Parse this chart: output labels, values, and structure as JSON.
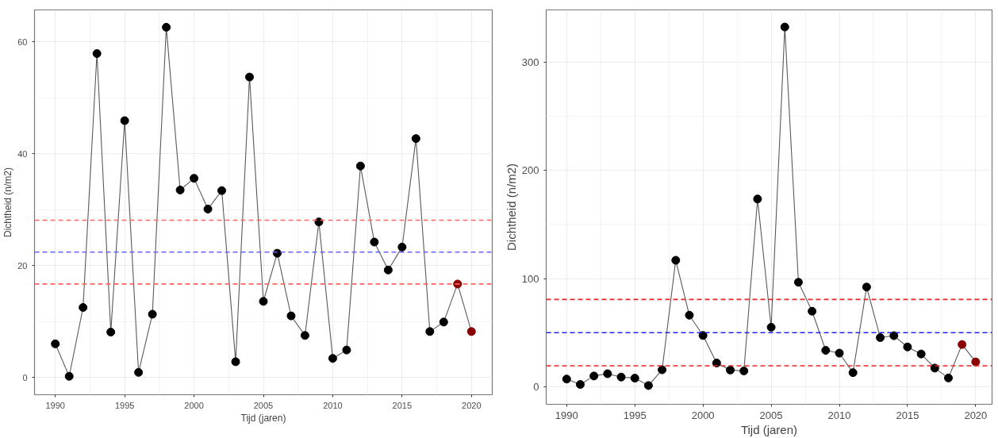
{
  "chart_data": [
    {
      "type": "line",
      "xlabel": "Tijd (jaren)",
      "ylabel": "Dichtheid (n/m2)",
      "x": [
        1990,
        1991,
        1992,
        1993,
        1994,
        1995,
        1996,
        1997,
        1998,
        1999,
        2000,
        2001,
        2002,
        2003,
        2004,
        2005,
        2006,
        2007,
        2008,
        2009,
        2010,
        2011,
        2012,
        2013,
        2014,
        2015,
        2016,
        2017,
        2018,
        2019,
        2020
      ],
      "series": [
        {
          "color": "#595959",
          "colors": [
            "#000000",
            "#000000",
            "#000000",
            "#000000",
            "#000000",
            "#000000",
            "#000000",
            "#000000",
            "#000000",
            "#000000",
            "#000000",
            "#000000",
            "#000000",
            "#000000",
            "#000000",
            "#000000",
            "#000000",
            "#000000",
            "#000000",
            "#000000",
            "#000000",
            "#000000",
            "#000000",
            "#000000",
            "#000000",
            "#000000",
            "#000000",
            "#000000",
            "#000000",
            "#8b0000",
            "#8b0000"
          ],
          "values": [
            6.0,
            0.2,
            12.5,
            57.9,
            8.1,
            45.9,
            0.9,
            11.3,
            62.6,
            33.5,
            35.6,
            30.1,
            33.4,
            2.8,
            53.7,
            13.6,
            22.2,
            11.0,
            7.5,
            27.8,
            3.4,
            4.9,
            37.8,
            24.2,
            19.2,
            23.3,
            42.7,
            8.2,
            9.9,
            16.7,
            8.2
          ]
        }
      ],
      "xlim": [
        1988.5,
        2021.5
      ],
      "ylim": [
        -3.1,
        65.7
      ],
      "xticks": [
        1990,
        1995,
        2000,
        2005,
        2010,
        2015,
        2020
      ],
      "yticks": [
        0,
        20,
        40,
        60
      ],
      "ref_lines": [
        {
          "axis": "y",
          "value": 28.1,
          "color": "#ff6666",
          "line_style": "dashed"
        },
        {
          "axis": "y",
          "value": 22.4,
          "color": "#6666ff",
          "line_style": "dashed"
        },
        {
          "axis": "y",
          "value": 16.7,
          "color": "#ff6666",
          "line_style": "dashed"
        }
      ],
      "grid": true,
      "marker": "circle",
      "line_style": "solid"
    },
    {
      "type": "line",
      "xlabel": "Tijd (jaren)",
      "ylabel": "Dichtheid (n/m2)",
      "x": [
        1990,
        1991,
        1992,
        1993,
        1994,
        1995,
        1996,
        1997,
        1998,
        1999,
        2000,
        2001,
        2002,
        2003,
        2004,
        2005,
        2006,
        2007,
        2008,
        2009,
        2010,
        2011,
        2012,
        2013,
        2014,
        2015,
        2016,
        2017,
        2018,
        2019,
        2020
      ],
      "series": [
        {
          "color": "#595959",
          "colors": [
            "#000000",
            "#000000",
            "#000000",
            "#000000",
            "#000000",
            "#000000",
            "#000000",
            "#000000",
            "#000000",
            "#000000",
            "#000000",
            "#000000",
            "#000000",
            "#000000",
            "#000000",
            "#000000",
            "#000000",
            "#000000",
            "#000000",
            "#000000",
            "#000000",
            "#000000",
            "#000000",
            "#000000",
            "#000000",
            "#000000",
            "#000000",
            "#000000",
            "#000000",
            "#8b0000",
            "#8b0000"
          ],
          "values": [
            7.3,
            2.3,
            10.1,
            12.2,
            9.1,
            8.1,
            1.3,
            15.8,
            116.9,
            66.2,
            47.5,
            22.1,
            15.6,
            14.8,
            173.5,
            55.1,
            332.2,
            96.6,
            69.9,
            33.8,
            31.2,
            13.2,
            92.2,
            45.5,
            47.3,
            36.9,
            30.4,
            17.4,
            8.3,
            39.2,
            23.1
          ]
        }
      ],
      "xlim": [
        1988.5,
        2021.2
      ],
      "ylim": [
        -16,
        348
      ],
      "xticks": [
        1990,
        1995,
        2000,
        2005,
        2010,
        2015,
        2020
      ],
      "yticks": [
        100,
        200,
        300,
        {
          "value": 0,
          "label": "0"
        }
      ],
      "ref_lines": [
        {
          "axis": "y",
          "value": 80.8,
          "color": "#ee2222",
          "line_style": "dashed"
        },
        {
          "axis": "y",
          "value": 50.1,
          "color": "#2222ee",
          "line_style": "dashed"
        },
        {
          "axis": "y",
          "value": 19.5,
          "color": "#ee2222",
          "line_style": "dashed"
        }
      ],
      "grid": true,
      "marker": "circle",
      "line_style": "solid"
    }
  ]
}
